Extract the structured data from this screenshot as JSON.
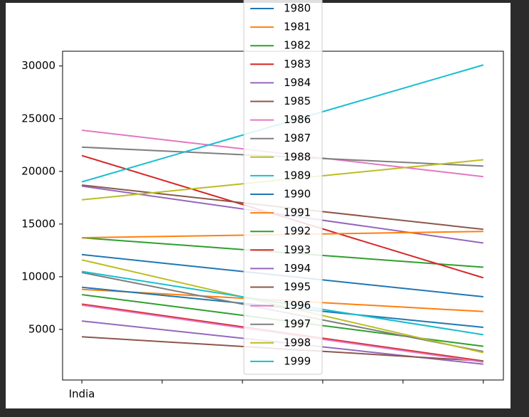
{
  "chart_data": {
    "type": "line",
    "x": [
      0,
      5
    ],
    "xlim": [
      -0.24,
      5.25
    ],
    "xticks": [
      {
        "value": 0,
        "label": "India"
      },
      {
        "value": 1,
        "label": null
      },
      {
        "value": 2,
        "label": null
      },
      {
        "value": 3,
        "label": null
      },
      {
        "value": 4,
        "label": null
      },
      {
        "value": 5,
        "label": null
      }
    ],
    "ylim": [
      200,
      31400
    ],
    "yticks": [
      5000,
      10000,
      15000,
      20000,
      25000,
      30000
    ],
    "legend": "upper center",
    "series": [
      {
        "name": "1980",
        "color": "#1f77b4",
        "values": [
          12100,
          8100
        ]
      },
      {
        "name": "1981",
        "color": "#ff7f0e",
        "values": [
          8800,
          6700
        ]
      },
      {
        "name": "1982",
        "color": "#2ca02c",
        "values": [
          13700,
          10900
        ]
      },
      {
        "name": "1983",
        "color": "#d62728",
        "values": [
          21500,
          9900
        ]
      },
      {
        "name": "1984",
        "color": "#9467bd",
        "values": [
          18600,
          13200
        ]
      },
      {
        "name": "1985",
        "color": "#8c564b",
        "values": [
          18700,
          14500
        ]
      },
      {
        "name": "1986",
        "color": "#e377c2",
        "values": [
          23900,
          19500
        ]
      },
      {
        "name": "1987",
        "color": "#7f7f7f",
        "values": [
          22300,
          20500
        ]
      },
      {
        "name": "1988",
        "color": "#bcbd22",
        "values": [
          17300,
          21100
        ]
      },
      {
        "name": "1989",
        "color": "#17becf",
        "values": [
          19000,
          30100
        ]
      },
      {
        "name": "1990",
        "color": "#1f77b4",
        "values": [
          9000,
          5200
        ]
      },
      {
        "name": "1991",
        "color": "#ff7f0e",
        "values": [
          13700,
          14300
        ]
      },
      {
        "name": "1992",
        "color": "#2ca02c",
        "values": [
          8300,
          3400
        ]
      },
      {
        "name": "1993",
        "color": "#d62728",
        "values": [
          7400,
          2000
        ]
      },
      {
        "name": "1994",
        "color": "#9467bd",
        "values": [
          5800,
          1700
        ]
      },
      {
        "name": "1995",
        "color": "#8c564b",
        "values": [
          4300,
          2000
        ]
      },
      {
        "name": "1996",
        "color": "#e377c2",
        "values": [
          7300,
          1900
        ]
      },
      {
        "name": "1997",
        "color": "#7f7f7f",
        "values": [
          10400,
          2900
        ]
      },
      {
        "name": "1998",
        "color": "#bcbd22",
        "values": [
          11600,
          2800
        ]
      },
      {
        "name": "1999",
        "color": "#17becf",
        "values": [
          10500,
          4500
        ]
      }
    ]
  }
}
